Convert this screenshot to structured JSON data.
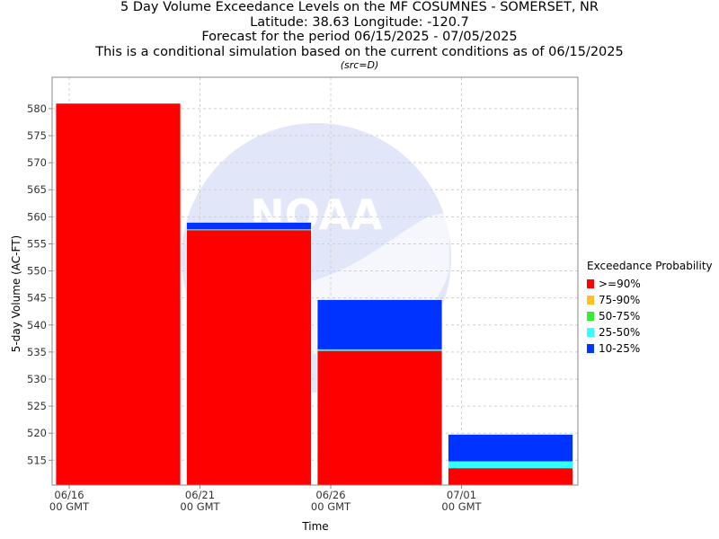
{
  "title_lines": [
    "5 Day Volume Exceedance Levels on the MF COSUMNES - SOMERSET, NR",
    "Latitude: 38.63 Longitude: -120.7",
    "Forecast for the period 06/15/2025 - 07/05/2025",
    "This is a conditional simulation based on the current conditions as of 06/15/2025"
  ],
  "src_note": "(src=D)",
  "watermark": "NOAA / OCEANIC AND ATMOSPHERIC ADMINISTRATION",
  "chart_data": {
    "type": "bar",
    "title": "5 Day Volume Exceedance Levels on the MF COSUMNES - SOMERSET, NR",
    "xlabel": "Time",
    "ylabel": "5-day Volume (AC-FT)",
    "ylim": [
      510.4,
      585.8
    ],
    "yticks": [
      515,
      520,
      525,
      530,
      535,
      540,
      545,
      550,
      555,
      560,
      565,
      570,
      575,
      580
    ],
    "grid": true,
    "xticks": [
      {
        "line1": "06/16",
        "line2": "00 GMT"
      },
      {
        "line1": "06/21",
        "line2": "00 GMT"
      },
      {
        "line1": "06/26",
        "line2": "00 GMT"
      },
      {
        "line1": "07/01",
        "line2": "00 GMT"
      }
    ],
    "periods": [
      {
        "start": "06/16",
        "end": "06/21"
      },
      {
        "start": "06/21",
        "end": "06/26"
      },
      {
        "start": "06/26",
        "end": "07/01"
      },
      {
        "start": "07/01",
        "end": "07/06"
      }
    ],
    "series": [
      {
        "name": ">=90%",
        "color": "#ff0000",
        "values": [
          581.0,
          557.5,
          535.2,
          513.5
        ]
      },
      {
        "name": "75-90%",
        "color": "#ffc020",
        "values": [
          581.0,
          557.5,
          535.2,
          513.5
        ]
      },
      {
        "name": "50-75%",
        "color": "#33ee33",
        "values": [
          581.0,
          557.5,
          535.2,
          513.5
        ]
      },
      {
        "name": "25-50%",
        "color": "#33ffff",
        "values": [
          581.0,
          557.7,
          535.5,
          514.8
        ]
      },
      {
        "name": "10-25%",
        "color": "#0033ff",
        "values": [
          581.0,
          559.0,
          544.7,
          519.8
        ]
      }
    ],
    "legend_title": "Exceedance Probability",
    "legend_position": "right"
  }
}
